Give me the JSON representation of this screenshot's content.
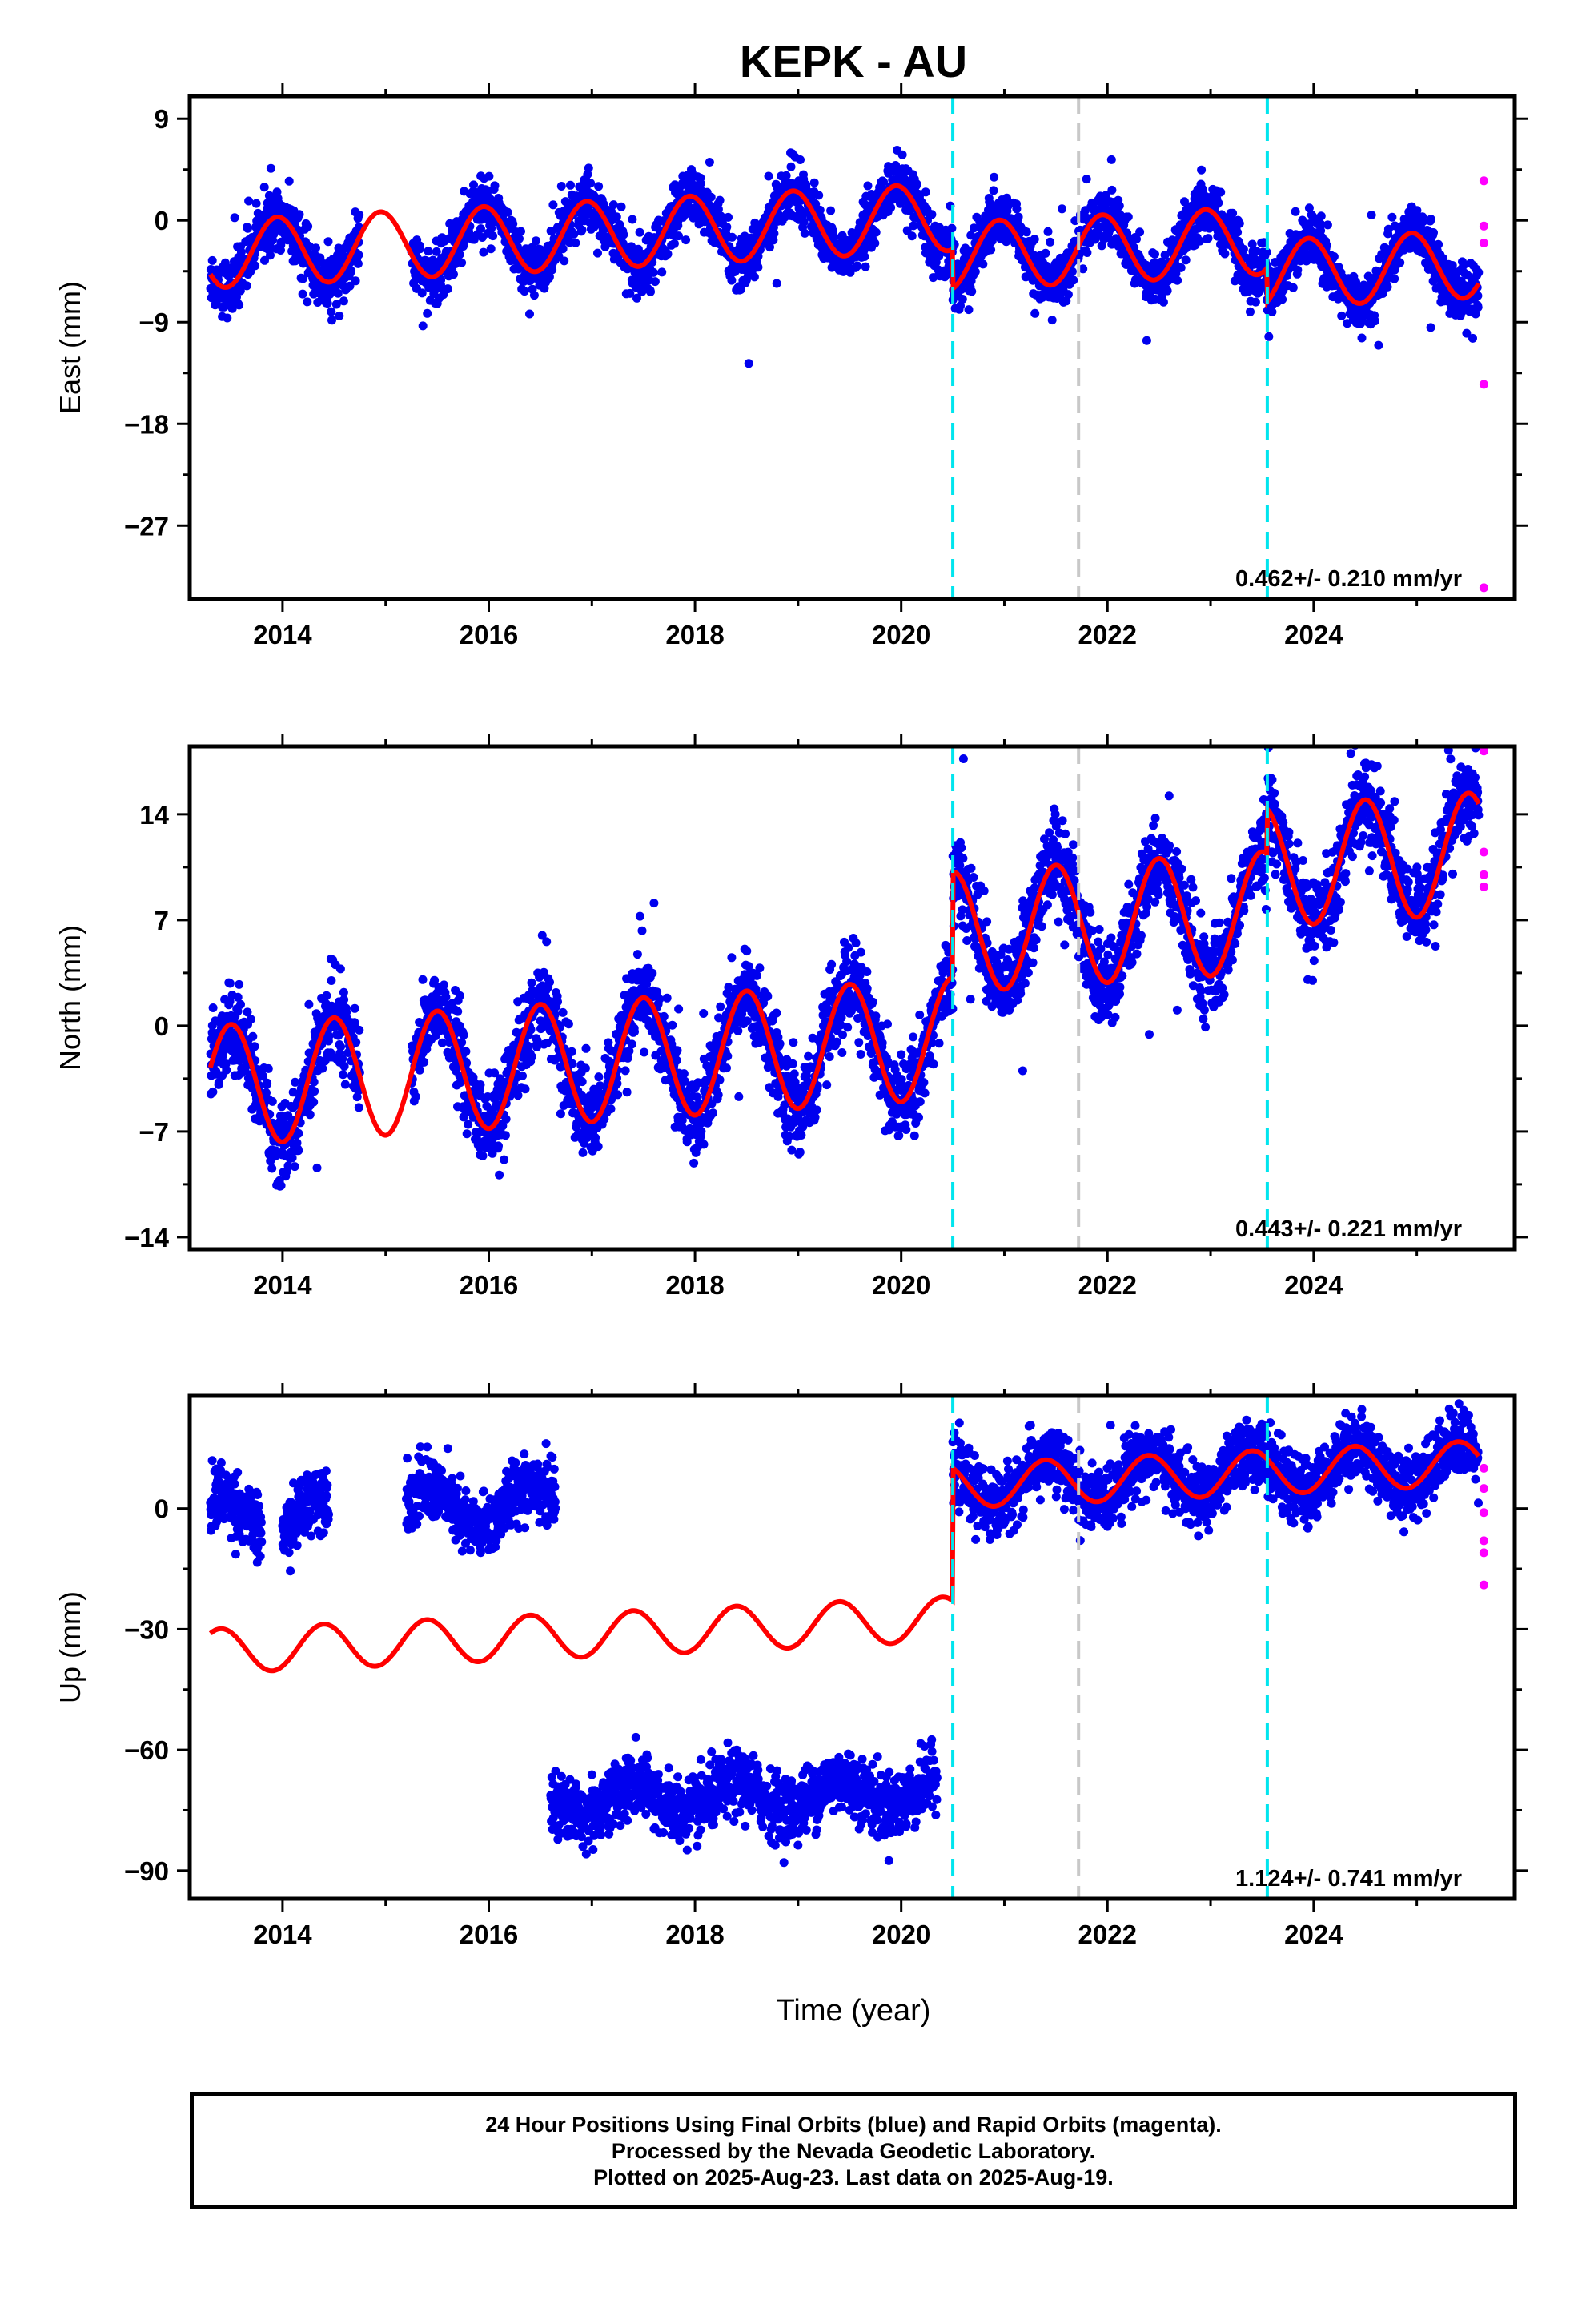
{
  "title": "KEPK - AU",
  "xlabel": "Time (year)",
  "caption": {
    "line1": "24 Hour Positions Using Final Orbits (blue) and Rapid Orbits (magenta).",
    "line2": "Processed by the Nevada Geodetic Laboratory.",
    "line3": "Plotted on 2025-Aug-23. Last data on 2025-Aug-19."
  },
  "colors": {
    "final_orbits": "#0000ee",
    "rapid_orbits": "#ff00ff",
    "model": "#ff0000",
    "equipment_change": "#00e5ee",
    "other_event": "#c8c8c8"
  },
  "chart_data": [
    {
      "type": "scatter",
      "ylabel": "East (mm)",
      "xlim": [
        2013.1,
        2025.95
      ],
      "ylim": [
        -33.5,
        11
      ],
      "x_ticks": [
        2014,
        2016,
        2018,
        2020,
        2022,
        2024
      ],
      "y_ticks": [
        9,
        0,
        -9,
        -18,
        -27
      ],
      "velocity_label": "0.462+/- 0.210 mm/yr",
      "event_lines": [
        {
          "x": 2020.5,
          "color": "cyan"
        },
        {
          "x": 2021.72,
          "color": "gray"
        },
        {
          "x": 2023.55,
          "color": "cyan"
        }
      ],
      "data_segments": [
        [
          2013.3,
          2014.4
        ],
        [
          2014.4,
          2014.75
        ],
        [
          2015.25,
          2020.5
        ],
        [
          2020.5,
          2025.6
        ]
      ],
      "model": {
        "start": 2013.3,
        "end": 2025.6,
        "offset_start": -3.0,
        "velocity": 0.462,
        "annual_amplitude": 3.0,
        "annual_phase_peak": 0.95,
        "steps": [
          {
            "x": 2020.5,
            "dy": -3.5
          },
          {
            "x": 2023.55,
            "dy": -3.0
          }
        ]
      },
      "scatter_sd": 1.2,
      "rapid_points": [
        {
          "x": 2025.65,
          "y": 3.5
        },
        {
          "x": 2025.65,
          "y": -0.5
        },
        {
          "x": 2025.65,
          "y": -2.0
        },
        {
          "x": 2025.65,
          "y": -14.5
        },
        {
          "x": 2025.65,
          "y": -32.5
        }
      ]
    },
    {
      "type": "scatter",
      "ylabel": "North (mm)",
      "xlim": [
        2013.1,
        2025.95
      ],
      "ylim": [
        -14.8,
        18.5
      ],
      "x_ticks": [
        2014,
        2016,
        2018,
        2020,
        2022,
        2024
      ],
      "y_ticks": [
        14,
        7,
        0,
        -7,
        -14
      ],
      "velocity_label": "0.443+/- 0.221 mm/yr",
      "event_lines": [
        {
          "x": 2020.5,
          "color": "cyan"
        },
        {
          "x": 2021.72,
          "color": "gray"
        },
        {
          "x": 2023.55,
          "color": "cyan"
        }
      ],
      "data_segments": [
        [
          2013.3,
          2014.4
        ],
        [
          2014.4,
          2014.75
        ],
        [
          2015.25,
          2020.5
        ],
        [
          2020.5,
          2025.6
        ]
      ],
      "model": {
        "start": 2013.3,
        "end": 2025.6,
        "offset_start": -4.0,
        "velocity": 0.443,
        "annual_amplitude": 4.0,
        "annual_phase_peak": 0.5,
        "steps": [
          {
            "x": 2020.5,
            "dy": 7.0
          },
          {
            "x": 2023.55,
            "dy": 3.0
          }
        ]
      },
      "scatter_sd": 1.4,
      "rapid_points": [
        {
          "x": 2025.65,
          "y": 18.2
        },
        {
          "x": 2025.65,
          "y": 11.5
        },
        {
          "x": 2025.65,
          "y": 10.0
        },
        {
          "x": 2025.65,
          "y": 9.2
        }
      ]
    },
    {
      "type": "scatter",
      "ylabel": "Up (mm)",
      "xlim": [
        2013.1,
        2025.95
      ],
      "ylim": [
        -97,
        28
      ],
      "x_ticks": [
        2014,
        2016,
        2018,
        2020,
        2022,
        2024
      ],
      "y_ticks": [
        0,
        -30,
        -60,
        -90
      ],
      "velocity_label": "1.124+/- 0.741 mm/yr",
      "event_lines": [
        {
          "x": 2020.5,
          "color": "cyan"
        },
        {
          "x": 2021.72,
          "color": "gray"
        },
        {
          "x": 2023.55,
          "color": "cyan"
        }
      ],
      "upper_cluster_segments": [
        [
          2013.3,
          2013.8
        ],
        [
          2014.0,
          2014.45
        ],
        [
          2015.2,
          2016.65
        ],
        [
          2020.5,
          2025.6
        ]
      ],
      "lower_cluster_segments": [
        [
          2016.6,
          2020.35
        ]
      ],
      "lower_cluster_offset": -72,
      "model": {
        "start": 2013.3,
        "end": 2025.6,
        "offset_start": -35.5,
        "velocity": 1.124,
        "annual_amplitude": 5.5,
        "annual_phase_peak": 0.4,
        "steps": [
          {
            "x": 2020.5,
            "dy": 33.0
          }
        ]
      },
      "scatter_sd": 4.0,
      "rapid_points": [
        {
          "x": 2025.65,
          "y": 10.0
        },
        {
          "x": 2025.65,
          "y": 5.0
        },
        {
          "x": 2025.65,
          "y": -1.0
        },
        {
          "x": 2025.65,
          "y": -8.0
        },
        {
          "x": 2025.65,
          "y": -11.0
        },
        {
          "x": 2025.65,
          "y": -19.0
        }
      ]
    }
  ]
}
